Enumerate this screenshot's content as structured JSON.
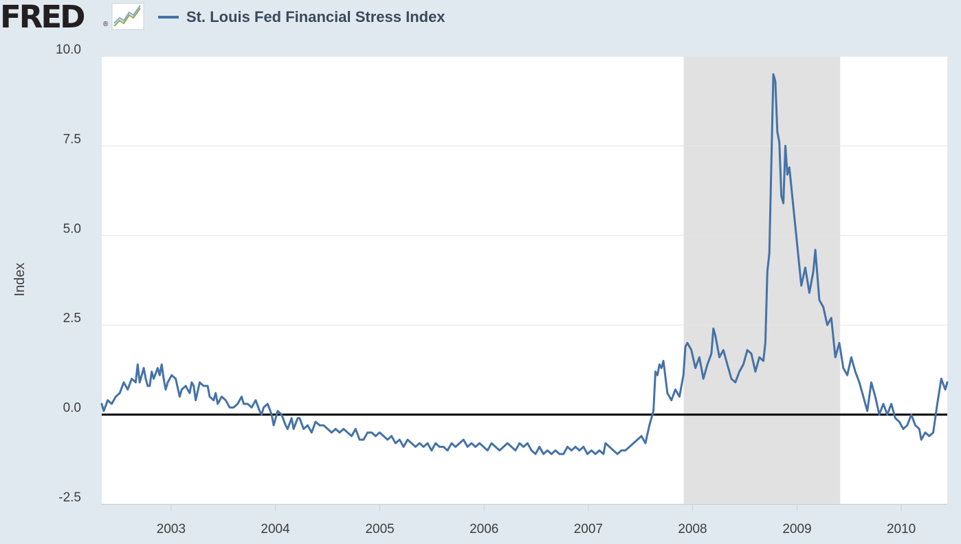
{
  "header": {
    "logo_text": "FRED",
    "logo_mark": "®",
    "graph_icon": "line-chart-icon"
  },
  "chart_data": {
    "type": "line",
    "title": "St. Louis Fed Financial Stress Index",
    "xlabel": "",
    "ylabel": "Index",
    "ylim": [
      -2.5,
      10
    ],
    "xlim": [
      "2002-05-03",
      "2010-06-11"
    ],
    "y_ticks": [
      "-2.5",
      "0.0",
      "2.5",
      "5.0",
      "7.5",
      "10.0"
    ],
    "x_ticks": [
      "2003",
      "2004",
      "2005",
      "2006",
      "2007",
      "2008",
      "2009",
      "2010"
    ],
    "grid": true,
    "zero_line": true,
    "legend": "top-left",
    "colors": {
      "line": "#4572a7",
      "recession": "#e1e1e1",
      "background": "#e1e9f0",
      "plot": "#ffffff",
      "zero_line": "#000000"
    },
    "recession": {
      "start": "2007-12-01",
      "end": "2009-06-01"
    },
    "series": [
      {
        "name": "St. Louis Fed Financial Stress Index",
        "points": [
          [
            "2002-05-03",
            0.3
          ],
          [
            "2002-05-10",
            0.1
          ],
          [
            "2002-05-24",
            0.4
          ],
          [
            "2002-06-07",
            0.3
          ],
          [
            "2002-06-21",
            0.5
          ],
          [
            "2002-07-05",
            0.6
          ],
          [
            "2002-07-19",
            0.9
          ],
          [
            "2002-08-02",
            0.7
          ],
          [
            "2002-08-16",
            1.0
          ],
          [
            "2002-08-30",
            0.9
          ],
          [
            "2002-09-06",
            1.4
          ],
          [
            "2002-09-13",
            0.9
          ],
          [
            "2002-09-27",
            1.3
          ],
          [
            "2002-10-04",
            1.0
          ],
          [
            "2002-10-11",
            0.8
          ],
          [
            "2002-10-18",
            0.8
          ],
          [
            "2002-10-25",
            1.2
          ],
          [
            "2002-11-01",
            1.0
          ],
          [
            "2002-11-15",
            1.3
          ],
          [
            "2002-11-22",
            1.1
          ],
          [
            "2002-11-29",
            1.4
          ],
          [
            "2002-12-06",
            1.0
          ],
          [
            "2002-12-13",
            0.7
          ],
          [
            "2002-12-20",
            0.9
          ],
          [
            "2003-01-03",
            1.1
          ],
          [
            "2003-01-17",
            1.0
          ],
          [
            "2003-01-31",
            0.5
          ],
          [
            "2003-02-07",
            0.7
          ],
          [
            "2003-02-21",
            0.8
          ],
          [
            "2003-03-07",
            0.6
          ],
          [
            "2003-03-14",
            0.9
          ],
          [
            "2003-03-21",
            0.8
          ],
          [
            "2003-03-28",
            0.4
          ],
          [
            "2003-04-11",
            0.9
          ],
          [
            "2003-04-25",
            0.8
          ],
          [
            "2003-05-09",
            0.8
          ],
          [
            "2003-05-16",
            0.5
          ],
          [
            "2003-05-30",
            0.4
          ],
          [
            "2003-06-06",
            0.6
          ],
          [
            "2003-06-13",
            0.3
          ],
          [
            "2003-06-27",
            0.5
          ],
          [
            "2003-07-11",
            0.4
          ],
          [
            "2003-07-25",
            0.2
          ],
          [
            "2003-08-08",
            0.2
          ],
          [
            "2003-08-22",
            0.3
          ],
          [
            "2003-09-05",
            0.5
          ],
          [
            "2003-09-12",
            0.3
          ],
          [
            "2003-09-26",
            0.3
          ],
          [
            "2003-10-10",
            0.2
          ],
          [
            "2003-10-24",
            0.4
          ],
          [
            "2003-11-07",
            0.1
          ],
          [
            "2003-11-14",
            0.0
          ],
          [
            "2003-11-21",
            0.2
          ],
          [
            "2003-12-05",
            0.3
          ],
          [
            "2003-12-19",
            0.0
          ],
          [
            "2003-12-26",
            -0.3
          ],
          [
            "2004-01-09",
            0.1
          ],
          [
            "2004-01-23",
            0.0
          ],
          [
            "2004-02-06",
            -0.3
          ],
          [
            "2004-02-13",
            -0.4
          ],
          [
            "2004-02-27",
            -0.1
          ],
          [
            "2004-03-05",
            -0.4
          ],
          [
            "2004-03-19",
            -0.1
          ],
          [
            "2004-03-26",
            -0.1
          ],
          [
            "2004-04-09",
            -0.4
          ],
          [
            "2004-04-23",
            -0.3
          ],
          [
            "2004-05-07",
            -0.5
          ],
          [
            "2004-05-21",
            -0.2
          ],
          [
            "2004-06-04",
            -0.3
          ],
          [
            "2004-06-18",
            -0.3
          ],
          [
            "2004-07-02",
            -0.4
          ],
          [
            "2004-07-16",
            -0.5
          ],
          [
            "2004-07-30",
            -0.4
          ],
          [
            "2004-08-13",
            -0.5
          ],
          [
            "2004-08-27",
            -0.4
          ],
          [
            "2004-09-10",
            -0.5
          ],
          [
            "2004-09-24",
            -0.6
          ],
          [
            "2004-10-08",
            -0.4
          ],
          [
            "2004-10-22",
            -0.7
          ],
          [
            "2004-11-05",
            -0.7
          ],
          [
            "2004-11-19",
            -0.5
          ],
          [
            "2004-12-03",
            -0.5
          ],
          [
            "2004-12-17",
            -0.6
          ],
          [
            "2004-12-31",
            -0.5
          ],
          [
            "2005-01-14",
            -0.6
          ],
          [
            "2005-01-28",
            -0.7
          ],
          [
            "2005-02-11",
            -0.6
          ],
          [
            "2005-02-25",
            -0.8
          ],
          [
            "2005-03-11",
            -0.7
          ],
          [
            "2005-03-25",
            -0.9
          ],
          [
            "2005-04-08",
            -0.7
          ],
          [
            "2005-04-22",
            -0.8
          ],
          [
            "2005-05-06",
            -0.9
          ],
          [
            "2005-05-20",
            -0.8
          ],
          [
            "2005-06-03",
            -0.9
          ],
          [
            "2005-06-17",
            -0.8
          ],
          [
            "2005-07-01",
            -1.0
          ],
          [
            "2005-07-15",
            -0.8
          ],
          [
            "2005-07-29",
            -0.9
          ],
          [
            "2005-08-12",
            -0.9
          ],
          [
            "2005-08-26",
            -1.0
          ],
          [
            "2005-09-09",
            -0.8
          ],
          [
            "2005-09-23",
            -0.9
          ],
          [
            "2005-10-07",
            -0.8
          ],
          [
            "2005-10-21",
            -0.7
          ],
          [
            "2005-11-04",
            -0.9
          ],
          [
            "2005-11-18",
            -0.8
          ],
          [
            "2005-12-02",
            -0.9
          ],
          [
            "2005-12-16",
            -0.8
          ],
          [
            "2005-12-30",
            -0.9
          ],
          [
            "2006-01-13",
            -1.0
          ],
          [
            "2006-01-27",
            -0.8
          ],
          [
            "2006-02-10",
            -0.9
          ],
          [
            "2006-02-24",
            -1.0
          ],
          [
            "2006-03-10",
            -0.9
          ],
          [
            "2006-03-24",
            -0.8
          ],
          [
            "2006-04-07",
            -0.9
          ],
          [
            "2006-04-21",
            -1.0
          ],
          [
            "2006-05-05",
            -0.8
          ],
          [
            "2006-05-19",
            -0.9
          ],
          [
            "2006-06-02",
            -0.8
          ],
          [
            "2006-06-16",
            -1.0
          ],
          [
            "2006-06-30",
            -1.1
          ],
          [
            "2006-07-14",
            -0.9
          ],
          [
            "2006-07-28",
            -1.1
          ],
          [
            "2006-08-11",
            -1.0
          ],
          [
            "2006-08-25",
            -1.1
          ],
          [
            "2006-09-08",
            -1.0
          ],
          [
            "2006-09-22",
            -1.1
          ],
          [
            "2006-10-06",
            -1.1
          ],
          [
            "2006-10-20",
            -0.9
          ],
          [
            "2006-11-03",
            -1.0
          ],
          [
            "2006-11-17",
            -0.9
          ],
          [
            "2006-12-01",
            -1.0
          ],
          [
            "2006-12-15",
            -0.9
          ],
          [
            "2006-12-29",
            -1.1
          ],
          [
            "2007-01-12",
            -1.0
          ],
          [
            "2007-01-26",
            -1.1
          ],
          [
            "2007-02-09",
            -1.0
          ],
          [
            "2007-02-23",
            -1.1
          ],
          [
            "2007-03-02",
            -0.8
          ],
          [
            "2007-03-16",
            -0.9
          ],
          [
            "2007-03-30",
            -1.0
          ],
          [
            "2007-04-13",
            -1.1
          ],
          [
            "2007-04-27",
            -1.0
          ],
          [
            "2007-05-11",
            -1.0
          ],
          [
            "2007-05-25",
            -0.9
          ],
          [
            "2007-06-08",
            -0.8
          ],
          [
            "2007-06-22",
            -0.7
          ],
          [
            "2007-07-06",
            -0.6
          ],
          [
            "2007-07-20",
            -0.8
          ],
          [
            "2007-08-03",
            -0.3
          ],
          [
            "2007-08-17",
            0.1
          ],
          [
            "2007-08-24",
            1.2
          ],
          [
            "2007-08-31",
            1.1
          ],
          [
            "2007-09-07",
            1.4
          ],
          [
            "2007-09-14",
            1.3
          ],
          [
            "2007-09-21",
            1.5
          ],
          [
            "2007-10-05",
            0.6
          ],
          [
            "2007-10-19",
            0.4
          ],
          [
            "2007-11-02",
            0.7
          ],
          [
            "2007-11-16",
            0.5
          ],
          [
            "2007-11-30",
            1.1
          ],
          [
            "2007-12-07",
            1.9
          ],
          [
            "2007-12-14",
            2.0
          ],
          [
            "2007-12-28",
            1.8
          ],
          [
            "2008-01-11",
            1.3
          ],
          [
            "2008-01-25",
            1.6
          ],
          [
            "2008-02-08",
            1.0
          ],
          [
            "2008-02-22",
            1.4
          ],
          [
            "2008-03-07",
            1.7
          ],
          [
            "2008-03-14",
            2.4
          ],
          [
            "2008-03-21",
            2.2
          ],
          [
            "2008-04-04",
            1.6
          ],
          [
            "2008-04-18",
            1.8
          ],
          [
            "2008-05-02",
            1.4
          ],
          [
            "2008-05-16",
            1.0
          ],
          [
            "2008-05-30",
            0.9
          ],
          [
            "2008-06-13",
            1.2
          ],
          [
            "2008-06-27",
            1.4
          ],
          [
            "2008-07-11",
            1.8
          ],
          [
            "2008-07-25",
            1.7
          ],
          [
            "2008-08-08",
            1.2
          ],
          [
            "2008-08-22",
            1.6
          ],
          [
            "2008-09-05",
            1.5
          ],
          [
            "2008-09-12",
            2.0
          ],
          [
            "2008-09-19",
            4.0
          ],
          [
            "2008-09-26",
            4.5
          ],
          [
            "2008-10-03",
            7.0
          ],
          [
            "2008-10-10",
            9.5
          ],
          [
            "2008-10-17",
            9.3
          ],
          [
            "2008-10-24",
            7.9
          ],
          [
            "2008-10-31",
            7.6
          ],
          [
            "2008-11-07",
            6.1
          ],
          [
            "2008-11-14",
            5.9
          ],
          [
            "2008-11-21",
            7.5
          ],
          [
            "2008-11-28",
            6.7
          ],
          [
            "2008-12-05",
            6.9
          ],
          [
            "2008-12-19",
            5.8
          ],
          [
            "2009-01-02",
            4.7
          ],
          [
            "2009-01-16",
            3.6
          ],
          [
            "2009-01-30",
            4.1
          ],
          [
            "2009-02-13",
            3.4
          ],
          [
            "2009-02-27",
            4.0
          ],
          [
            "2009-03-06",
            4.6
          ],
          [
            "2009-03-20",
            3.2
          ],
          [
            "2009-04-03",
            3.0
          ],
          [
            "2009-04-17",
            2.5
          ],
          [
            "2009-05-01",
            2.7
          ],
          [
            "2009-05-15",
            1.6
          ],
          [
            "2009-05-29",
            2.0
          ],
          [
            "2009-06-12",
            1.3
          ],
          [
            "2009-06-26",
            1.1
          ],
          [
            "2009-07-10",
            1.6
          ],
          [
            "2009-07-24",
            1.2
          ],
          [
            "2009-08-07",
            0.9
          ],
          [
            "2009-08-21",
            0.5
          ],
          [
            "2009-09-04",
            0.1
          ],
          [
            "2009-09-18",
            0.9
          ],
          [
            "2009-10-02",
            0.5
          ],
          [
            "2009-10-16",
            0.0
          ],
          [
            "2009-10-30",
            0.3
          ],
          [
            "2009-11-13",
            0.0
          ],
          [
            "2009-11-27",
            0.3
          ],
          [
            "2009-12-11",
            -0.1
          ],
          [
            "2009-12-25",
            -0.2
          ],
          [
            "2010-01-08",
            -0.4
          ],
          [
            "2010-01-22",
            -0.3
          ],
          [
            "2010-02-05",
            0.0
          ],
          [
            "2010-02-19",
            -0.3
          ],
          [
            "2010-03-05",
            -0.4
          ],
          [
            "2010-03-12",
            -0.7
          ],
          [
            "2010-03-26",
            -0.5
          ],
          [
            "2010-04-09",
            -0.6
          ],
          [
            "2010-04-23",
            -0.5
          ],
          [
            "2010-05-07",
            0.3
          ],
          [
            "2010-05-21",
            1.0
          ],
          [
            "2010-06-04",
            0.7
          ],
          [
            "2010-06-11",
            0.9
          ]
        ]
      }
    ]
  }
}
